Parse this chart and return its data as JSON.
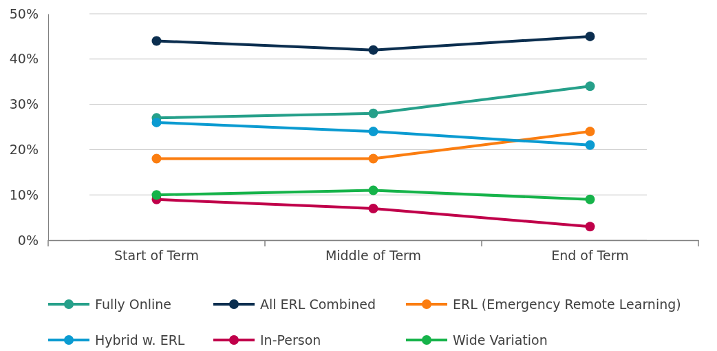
{
  "chart_data": {
    "type": "line",
    "categories": [
      "Start of Term",
      "Middle of Term",
      "End of Term"
    ],
    "ylim": [
      0,
      50
    ],
    "yticks": [
      {
        "value": 0,
        "label": "0%"
      },
      {
        "value": 10,
        "label": "10%"
      },
      {
        "value": 20,
        "label": "20%"
      },
      {
        "value": 30,
        "label": "30%"
      },
      {
        "value": 40,
        "label": "40%"
      },
      {
        "value": 50,
        "label": "50%"
      }
    ],
    "grid": "y",
    "legend": "bottom",
    "marker": "circle",
    "line_style": "solid",
    "series": [
      {
        "name": "Fully Online",
        "color": "#26a08a",
        "values": [
          27,
          28,
          34
        ]
      },
      {
        "name": "All ERL Combined",
        "color": "#0b2e4f",
        "values": [
          44,
          42,
          45
        ]
      },
      {
        "name": "ERL (Emergency Remote Learning)",
        "color": "#fb7d10",
        "values": [
          18,
          18,
          24
        ]
      },
      {
        "name": "Hybrid w. ERL",
        "color": "#0b9bd1",
        "values": [
          26,
          24,
          21
        ]
      },
      {
        "name": "In-Person",
        "color": "#c0004a",
        "values": [
          9,
          7,
          3
        ]
      },
      {
        "name": "Wide Variation",
        "color": "#16b34a",
        "values": [
          10,
          11,
          9
        ]
      }
    ]
  }
}
